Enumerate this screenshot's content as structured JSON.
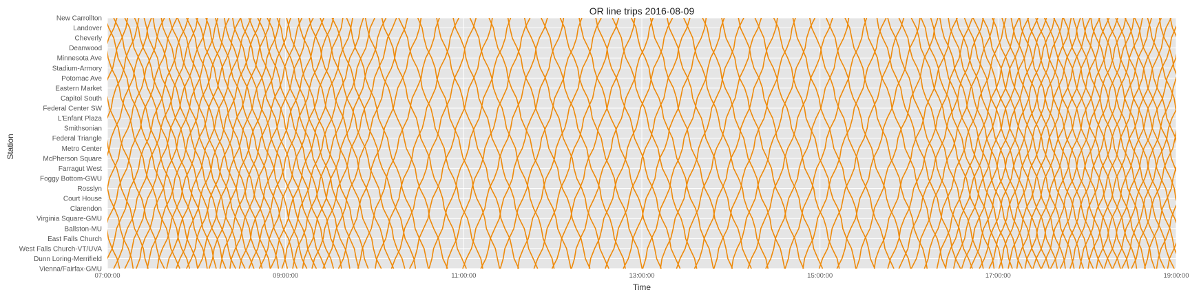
{
  "chart_data": {
    "type": "line",
    "title": "OR line trips 2016-08-09",
    "xlabel": "Time",
    "ylabel": "Station",
    "x_ticks": [
      "07:00:00",
      "09:00:00",
      "11:00:00",
      "13:00:00",
      "15:00:00",
      "17:00:00",
      "19:00:00"
    ],
    "xlim": [
      "07:00:00",
      "19:00:00"
    ],
    "y_categories": [
      "New Carrollton",
      "Landover",
      "Cheverly",
      "Deanwood",
      "Minnesota Ave",
      "Stadium-Armory",
      "Potomac Ave",
      "Eastern Market",
      "Capitol South",
      "Federal Center SW",
      "L'Enfant Plaza",
      "Smithsonian",
      "Federal Triangle",
      "Metro Center",
      "McPherson Square",
      "Farragut West",
      "Foggy Bottom-GWU",
      "Rosslyn",
      "Court House",
      "Clarendon",
      "Virginia Square-GMU",
      "Ballston-MU",
      "East Falls Church",
      "West Falls Church-VT/UVA",
      "Dunn Loring-Merrifield",
      "Vienna/Fairfax-GMU"
    ],
    "grid": true,
    "colors": {
      "line": "#ee8a0a",
      "plot_bg": "#e5e5e5",
      "grid": "#ffffff",
      "tick_text": "#555555",
      "label_text": "#333333"
    },
    "trip_duration_minutes": 56,
    "trips": {
      "westbound_start_times": [
        "06:12:00",
        "06:22:00",
        "06:32:00",
        "06:42:00",
        "06:52:00",
        "06:59:00",
        "07:05:00",
        "07:12:00",
        "07:18:00",
        "07:24:00",
        "07:30:00",
        "07:36:00",
        "07:42:00",
        "07:48:00",
        "07:54:00",
        "08:00:00",
        "08:06:00",
        "08:12:00",
        "08:18:00",
        "08:24:00",
        "08:30:00",
        "08:36:00",
        "08:42:00",
        "08:48:00",
        "08:54:00",
        "09:00:00",
        "09:08:00",
        "09:16:00",
        "09:24:00",
        "09:32:00",
        "09:41:00",
        "09:53:00",
        "10:05:00",
        "10:17:00",
        "10:29:00",
        "10:41:00",
        "10:53:00",
        "11:05:00",
        "11:17:00",
        "11:29:00",
        "11:41:00",
        "11:53:00",
        "12:05:00",
        "12:17:00",
        "12:29:00",
        "12:41:00",
        "12:53:00",
        "13:05:00",
        "13:17:00",
        "13:29:00",
        "13:41:00",
        "13:53:00",
        "14:05:00",
        "14:17:00",
        "14:29:00",
        "14:41:00",
        "14:53:00",
        "15:05:00",
        "15:17:00",
        "15:29:00",
        "15:38:00",
        "15:46:00",
        "15:54:00",
        "16:02:00",
        "16:08:00",
        "16:14:00",
        "16:20:00",
        "16:26:00",
        "16:32:00",
        "16:38:00",
        "16:44:00",
        "16:50:00",
        "16:56:00",
        "17:02:00",
        "17:08:00",
        "17:14:00",
        "17:20:00",
        "17:26:00",
        "17:32:00",
        "17:38:00",
        "17:44:00",
        "17:50:00",
        "17:56:00",
        "18:02:00",
        "18:08:00",
        "18:14:00",
        "18:20:00",
        "18:26:00",
        "18:32:00",
        "18:40:00",
        "18:48:00",
        "18:56:00"
      ],
      "eastbound_start_times": [
        "06:10:00",
        "06:18:00",
        "06:26:00",
        "06:34:00",
        "06:42:00",
        "06:50:00",
        "06:58:00",
        "07:05:00",
        "07:12:00",
        "07:19:00",
        "07:26:00",
        "07:33:00",
        "07:40:00",
        "07:47:00",
        "07:54:00",
        "08:01:00",
        "08:08:00",
        "08:15:00",
        "08:22:00",
        "08:29:00",
        "08:36:00",
        "08:43:00",
        "08:50:00",
        "08:57:00",
        "09:04:00",
        "09:11:00",
        "09:18:00",
        "09:26:00",
        "09:36:00",
        "09:48:00",
        "10:00:00",
        "10:12:00",
        "10:24:00",
        "10:36:00",
        "10:48:00",
        "11:00:00",
        "11:12:00",
        "11:24:00",
        "11:36:00",
        "11:48:00",
        "12:00:00",
        "12:12:00",
        "12:24:00",
        "12:36:00",
        "12:48:00",
        "13:00:00",
        "13:12:00",
        "13:24:00",
        "13:36:00",
        "13:48:00",
        "14:00:00",
        "14:12:00",
        "14:24:00",
        "14:36:00",
        "14:48:00",
        "15:00:00",
        "15:12:00",
        "15:24:00",
        "15:36:00",
        "15:46:00",
        "15:54:00",
        "16:02:00",
        "16:10:00",
        "16:18:00",
        "16:24:00",
        "16:30:00",
        "16:36:00",
        "16:42:00",
        "16:48:00",
        "16:54:00",
        "17:00:00",
        "17:06:00",
        "17:12:00",
        "17:18:00",
        "17:24:00",
        "17:30:00",
        "17:36:00",
        "17:42:00",
        "17:48:00",
        "17:54:00",
        "18:00:00",
        "18:06:00",
        "18:12:00",
        "18:18:00",
        "18:24:00",
        "18:30:00",
        "18:38:00",
        "18:46:00",
        "18:54:00",
        "19:02:00"
      ]
    }
  }
}
